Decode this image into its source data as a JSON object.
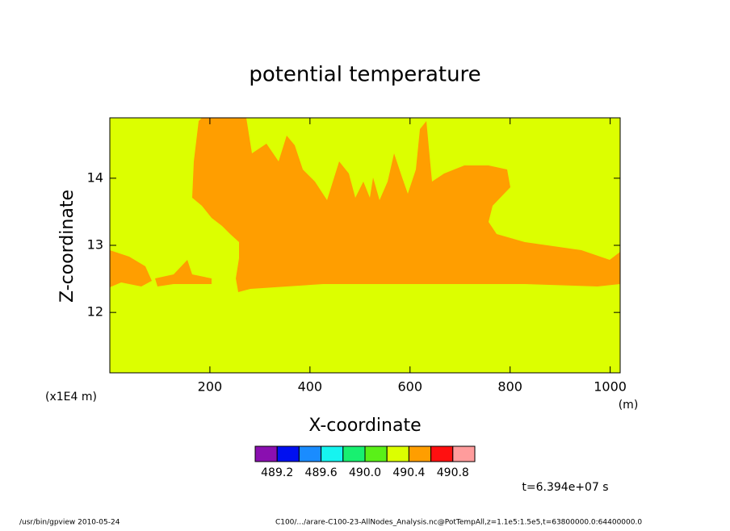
{
  "chart_data": {
    "type": "contour",
    "title": "potential temperature",
    "xlabel": "X-coordinate",
    "ylabel": "Z-coordinate",
    "xunit": "(m)",
    "yunit": "(x1E4 m)",
    "xlim": [
      0,
      1020
    ],
    "ylim": [
      11.1,
      14.9
    ],
    "xticks": [
      200,
      400,
      600,
      800,
      1000
    ],
    "yticks": [
      12,
      13,
      14
    ],
    "colorbar_levels": [
      489.2,
      489.4,
      489.6,
      489.8,
      490,
      490.2,
      490.4,
      490.6,
      490.8
    ],
    "colorbar_colors": [
      "#8a0fb0",
      "#0010f0",
      "#1a8cff",
      "#16f4f0",
      "#18f070",
      "#5af018",
      "#dcff00",
      "#ff9e00",
      "#ff1010",
      "#ff9c9c"
    ],
    "colorbar_ticks": [
      489.2,
      489.6,
      {
        "value": 490,
        "label": "490.0"
      },
      490.4,
      490.8
    ],
    "time_label": "t=6.394e+07 s",
    "footer_left": "/usr/bin/gpview   2010-05-24",
    "footer_right": "C100/.../arare-C100-23-AllNodes_Analysis.nc@PotTempAll,z=1.1e5:1.5e5,t=63800000.0:64400000.0"
  }
}
